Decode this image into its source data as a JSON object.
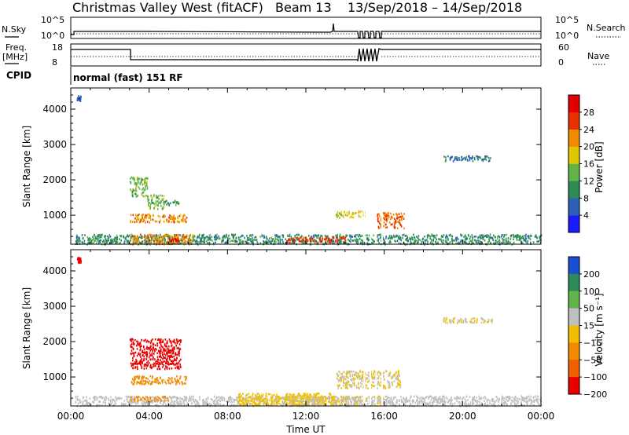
{
  "header": {
    "station": "Christmas Valley West (fitACF)",
    "beam": "Beam 13",
    "date_range": "13/Sep/2018 – 14/Sep/2018"
  },
  "aux_panels": {
    "nsky_label": "N.Sky",
    "nsky_ticks": [
      "10^5",
      "10^0"
    ],
    "nsearch_label": "N.Search",
    "nsearch_ticks": [
      "10^5",
      "10^0"
    ],
    "freq_label_1": "Freq.",
    "freq_label_2": "[MHz]",
    "freq_ticks": [
      "18",
      "8"
    ],
    "nave_label": "Nave",
    "nave_ticks": [
      "60",
      "0"
    ],
    "cpid_label": "CPID",
    "cpid_value": "normal (fast) 151 RF"
  },
  "chart_data": [
    {
      "type": "heatmap",
      "quantity": "Power",
      "ylabel": "Slant Range [km]",
      "yticks": [
        "1000",
        "2000",
        "3000",
        "4000"
      ],
      "ylim": [
        180,
        4600
      ],
      "xlim_hours": [
        0,
        24
      ],
      "xticks": [
        "00:00",
        "04:00",
        "08:00",
        "12:00",
        "16:00",
        "20:00",
        "00:00"
      ],
      "colorbar_label": "Power [dB]",
      "colorbar_ticks": [
        "4",
        "8",
        "12",
        "16",
        "20",
        "24",
        "28"
      ],
      "colorbar_colors": [
        "#1a1aff",
        "#2b5fb8",
        "#2e8b57",
        "#62b34a",
        "#e0c800",
        "#f08a00",
        "#e83000",
        "#e00000"
      ],
      "colorbar_range": [
        0,
        32
      ],
      "echo_regions": [
        {
          "t": [
            0.2,
            24.0
          ],
          "r": [
            200,
            480
          ],
          "value": 10
        },
        {
          "t": [
            3.0,
            6.2
          ],
          "r": [
            200,
            480
          ],
          "value": 22
        },
        {
          "t": [
            11.0,
            14.0
          ],
          "r": [
            250,
            400
          ],
          "value": 26
        },
        {
          "t": [
            5.0,
            5.5
          ],
          "r": [
            280,
            360
          ],
          "value": 30
        },
        {
          "t": [
            3.0,
            3.9
          ],
          "r": [
            1550,
            2100
          ],
          "value": 14
        },
        {
          "t": [
            3.9,
            4.8
          ],
          "r": [
            1200,
            1600
          ],
          "value": 14
        },
        {
          "t": [
            4.8,
            5.5
          ],
          "r": [
            1300,
            1450
          ],
          "value": 10
        },
        {
          "t": [
            3.0,
            5.9
          ],
          "r": [
            820,
            1050
          ],
          "value": 22
        },
        {
          "t": [
            13.5,
            15.0
          ],
          "r": [
            950,
            1150
          ],
          "value": 18
        },
        {
          "t": [
            15.6,
            17.0
          ],
          "r": [
            650,
            1100
          ],
          "value": 24
        },
        {
          "t": [
            19.0,
            21.5
          ],
          "r": [
            2550,
            2700
          ],
          "value": 8
        },
        {
          "t": [
            0.3,
            0.5
          ],
          "r": [
            4250,
            4400
          ],
          "value": 6
        }
      ]
    },
    {
      "type": "heatmap",
      "quantity": "Velocity",
      "ylabel": "Slant Range [km]",
      "yticks": [
        "1000",
        "2000",
        "3000",
        "4000"
      ],
      "ylim": [
        180,
        4600
      ],
      "xlim_hours": [
        0,
        24
      ],
      "xticks": [
        "00:00",
        "04:00",
        "08:00",
        "12:00",
        "16:00",
        "20:00",
        "00:00"
      ],
      "xlabel": "Time UT",
      "colorbar_label": "Velocity [m s⁻¹]",
      "colorbar_ticks": [
        "200",
        "100",
        "50",
        "15",
        "−15",
        "−50",
        "−100",
        "−200"
      ],
      "colorbar_colors": [
        "#1a4fd0",
        "#2e8b57",
        "#62b34a",
        "#c0c0c0",
        "#f0c000",
        "#f08a00",
        "#f06000",
        "#e80000"
      ],
      "colorbar_range": [
        -300,
        300
      ],
      "echo_regions": [
        {
          "t": [
            0.2,
            24.0
          ],
          "r": [
            200,
            480
          ],
          "value": 20
        },
        {
          "t": [
            8.5,
            13.5
          ],
          "r": [
            220,
            560
          ],
          "value": -30
        },
        {
          "t": [
            11.0,
            16.0
          ],
          "r": [
            230,
            480
          ],
          "value": 0
        },
        {
          "t": [
            3.0,
            5.6
          ],
          "r": [
            1250,
            2100
          ],
          "value": -250
        },
        {
          "t": [
            3.0,
            5.9
          ],
          "r": [
            820,
            1050
          ],
          "value": -120
        },
        {
          "t": [
            3.0,
            5.0
          ],
          "r": [
            330,
            470
          ],
          "value": -110
        },
        {
          "t": [
            13.5,
            16.8
          ],
          "r": [
            700,
            1200
          ],
          "value": 0
        },
        {
          "t": [
            19.0,
            21.5
          ],
          "r": [
            2550,
            2700
          ],
          "value": 0
        },
        {
          "t": [
            0.3,
            0.5
          ],
          "r": [
            4250,
            4400
          ],
          "value": -250
        }
      ]
    }
  ]
}
